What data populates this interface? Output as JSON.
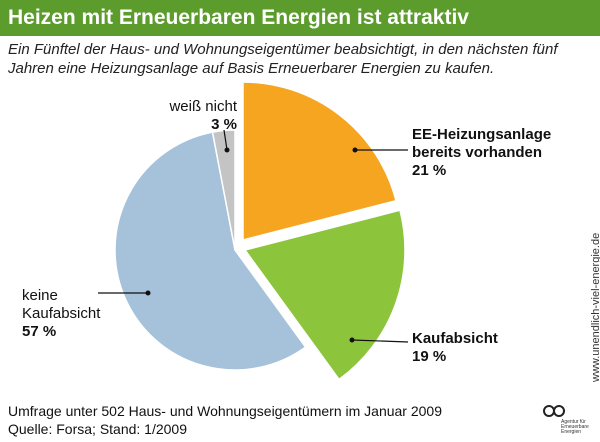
{
  "chart_data": {
    "type": "pie",
    "title": "Heizen mit Erneuerbaren Energien ist attraktiv",
    "subtitle": "Ein Fünftel der Haus- und Wohnungseigentümer beabsichtigt, in den nächsten fünf Jahren eine Heizungsanlage auf Basis Erneuerbarer Energien zu kaufen.",
    "categories": [
      "EE-Heizungsanlage bereits vorhanden",
      "Kaufabsicht",
      "keine Kaufabsicht",
      "weiß nicht"
    ],
    "values": [
      21,
      19,
      57,
      3
    ],
    "value_labels": [
      "21 %",
      "19 %",
      "57 %",
      "3 %"
    ],
    "colors": [
      "#f6a521",
      "#8cc43c",
      "#a6c1da",
      "#c4c4c4"
    ],
    "source": [
      "Umfrage unter 502 Haus- und Wohnungseigentümern im Januar 2009",
      "Quelle: Forsa; Stand: 1/2009"
    ],
    "website": "www.unendlich-viel-energie.de",
    "logo": "Agentur für Erneuerbare Energien"
  }
}
